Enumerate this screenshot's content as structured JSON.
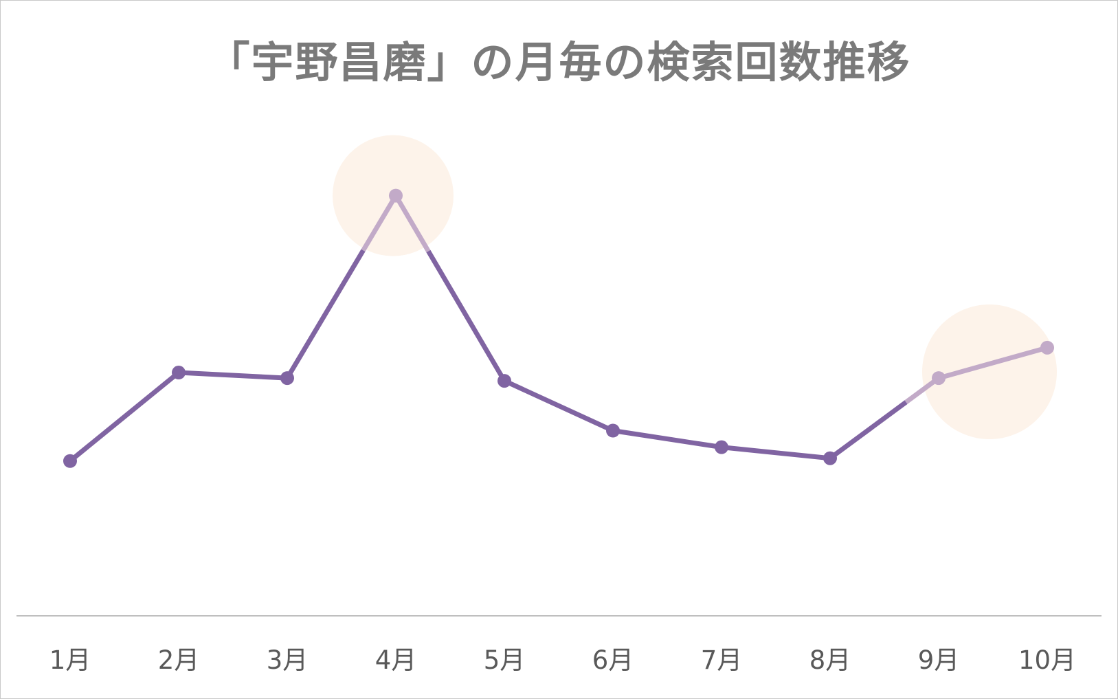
{
  "chart_data": {
    "type": "line",
    "title": "「宇野昌磨」の月毎の検索回数推移",
    "xlabel": "",
    "ylabel": "",
    "categories": [
      "1月",
      "2月",
      "3月",
      "4月",
      "5月",
      "6月",
      "7月",
      "8月",
      "9月",
      "10月"
    ],
    "series": [
      {
        "values": [
          28,
          44,
          43,
          76,
          42.5,
          33.5,
          30.5,
          28.5,
          43,
          48.5
        ],
        "color": "#8064a2",
        "highlight_color": "#c2aac8"
      }
    ],
    "highlights": [
      {
        "categories": [
          "4月"
        ],
        "color": "#fdf3ea"
      },
      {
        "categories": [
          "9月",
          "10月"
        ],
        "color": "#fdf3ea"
      }
    ],
    "ylim": [
      0,
      90
    ],
    "grid": false,
    "legend": "none",
    "axis_color": "#bfbfbf"
  }
}
